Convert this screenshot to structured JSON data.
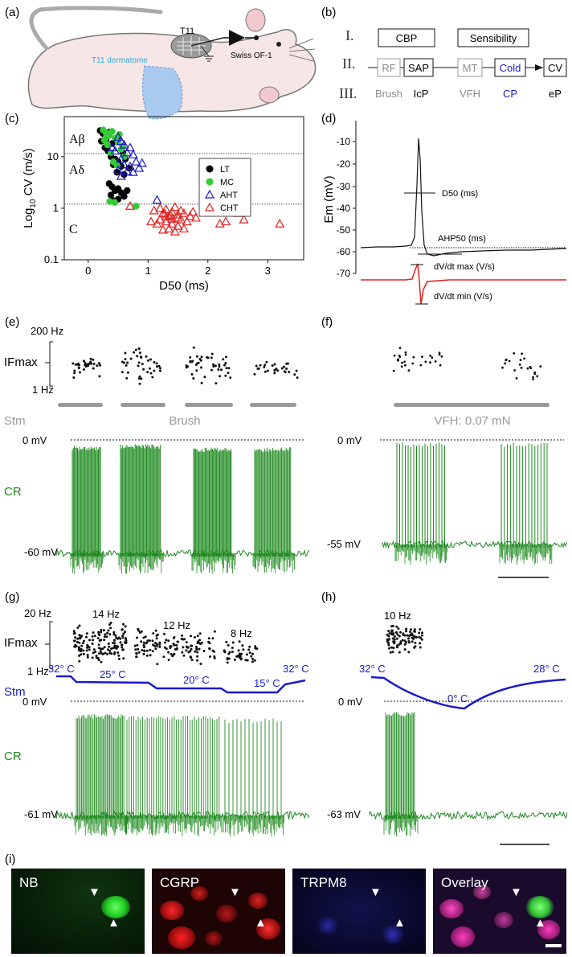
{
  "panels": {
    "a": "(a)",
    "b": "(b)",
    "c": "(c)",
    "d": "(d)",
    "e": "(e)",
    "f": "(f)",
    "g": "(g)",
    "h": "(h)",
    "i": "(i)"
  },
  "panel_a": {
    "t11": "T11",
    "strain": "Swiss OF-1",
    "dermatome": "T11 dermatome"
  },
  "panel_b": {
    "rows": [
      "I.",
      "II.",
      "III."
    ],
    "boxes_top": [
      "CBP",
      "Sensibility"
    ],
    "chain": [
      "RF",
      "SAP",
      "MT",
      "Cold",
      "CV"
    ],
    "bottom": [
      "Brush",
      "IcP",
      "VFH",
      "CP",
      "eP"
    ],
    "colors": {
      "grey": "#8c8c8c",
      "blue": "#1a1acc",
      "black": "#111111"
    }
  },
  "chart_data": [
    {
      "type": "scatter",
      "panel": "c",
      "xlabel": "D50 (ms)",
      "ylabel_prefix": "Log",
      "ylabel_sub": "10",
      "ylabel_suffix": " CV (m/s)",
      "xlim": [
        -0.4,
        3.6
      ],
      "ylim_log": [
        0.1,
        60
      ],
      "xticks": [
        "0",
        "1",
        "2",
        "3"
      ],
      "yticks": [
        "0.1",
        "1",
        "10"
      ],
      "regions": [
        "Aβ",
        "Aδ",
        "C"
      ],
      "thresholds": [
        11.5,
        1.2
      ],
      "legend": [
        "LT",
        "MC",
        "AHT",
        "CHT"
      ],
      "legend_placement": "top-right",
      "series": [
        {
          "name": "LT",
          "color": "#000000",
          "marker": "filled-circle",
          "points": [
            [
              0.2,
              32
            ],
            [
              0.25,
              28
            ],
            [
              0.3,
              25
            ],
            [
              0.35,
              30
            ],
            [
              0.22,
              20
            ],
            [
              0.4,
              18
            ],
            [
              0.28,
              15
            ],
            [
              0.33,
              13
            ],
            [
              0.38,
              10
            ],
            [
              0.45,
              9
            ],
            [
              0.5,
              8
            ],
            [
              0.42,
              7
            ],
            [
              0.55,
              6.5
            ],
            [
              0.48,
              5
            ],
            [
              0.6,
              4.5
            ],
            [
              0.35,
              3
            ],
            [
              0.4,
              2.6
            ],
            [
              0.5,
              2.4
            ],
            [
              0.45,
              2.2
            ],
            [
              0.55,
              2
            ],
            [
              0.38,
              1.8
            ],
            [
              0.6,
              1.7
            ],
            [
              0.5,
              1.5
            ],
            [
              0.42,
              1.4
            ],
            [
              0.65,
              2.2
            ],
            [
              0.3,
              22
            ],
            [
              0.5,
              24
            ],
            [
              0.58,
              12
            ],
            [
              0.62,
              9
            ],
            [
              0.68,
              6
            ]
          ]
        },
        {
          "name": "MC",
          "color": "#33cc33",
          "marker": "filled-circle",
          "points": [
            [
              0.25,
              33
            ],
            [
              0.3,
              29
            ],
            [
              0.35,
              26
            ],
            [
              0.4,
              31
            ],
            [
              0.27,
              21
            ],
            [
              0.45,
              23
            ],
            [
              0.5,
              19
            ],
            [
              0.32,
              17
            ],
            [
              0.55,
              14
            ],
            [
              0.38,
              12
            ],
            [
              0.6,
              10
            ],
            [
              0.42,
              8
            ],
            [
              0.48,
              6.8
            ],
            [
              0.3,
              24
            ],
            [
              0.52,
              27
            ],
            [
              0.58,
              16
            ],
            [
              0.44,
              1.3
            ],
            [
              0.8,
              1.1
            ],
            [
              0.36,
              1.35
            ]
          ]
        },
        {
          "name": "AHT",
          "color": "#1a1acc",
          "marker": "open-triangle",
          "points": [
            [
              0.5,
              24
            ],
            [
              0.55,
              20
            ],
            [
              0.6,
              17
            ],
            [
              0.7,
              15
            ],
            [
              0.45,
              13
            ],
            [
              0.65,
              12
            ],
            [
              0.75,
              11
            ],
            [
              0.55,
              9
            ],
            [
              0.8,
              8
            ],
            [
              0.6,
              7
            ],
            [
              0.7,
              6.5
            ],
            [
              0.85,
              6
            ],
            [
              0.5,
              5.5
            ],
            [
              0.65,
              5.2
            ],
            [
              0.75,
              5
            ],
            [
              0.9,
              7.5
            ],
            [
              0.55,
              4.2
            ],
            [
              1.15,
              1.45
            ],
            [
              0.4,
              15
            ]
          ]
        },
        {
          "name": "CHT",
          "color": "#e02020",
          "marker": "open-triangle",
          "points": [
            [
              0.7,
              1.1
            ],
            [
              1.1,
              0.9
            ],
            [
              1.2,
              1.0
            ],
            [
              1.25,
              0.8
            ],
            [
              1.3,
              0.95
            ],
            [
              1.35,
              0.7
            ],
            [
              1.4,
              0.85
            ],
            [
              1.45,
              1.05
            ],
            [
              1.5,
              0.75
            ],
            [
              1.55,
              0.9
            ],
            [
              1.6,
              0.8
            ],
            [
              1.2,
              0.6
            ],
            [
              1.3,
              0.55
            ],
            [
              1.4,
              0.5
            ],
            [
              1.5,
              0.45
            ],
            [
              1.35,
              0.4
            ],
            [
              1.45,
              0.35
            ],
            [
              1.25,
              0.38
            ],
            [
              1.55,
              0.6
            ],
            [
              1.65,
              0.55
            ],
            [
              1.7,
              0.7
            ],
            [
              1.75,
              0.85
            ],
            [
              1.8,
              0.65
            ],
            [
              1.15,
              0.5
            ],
            [
              1.05,
              0.55
            ],
            [
              1.6,
              0.4
            ],
            [
              1.5,
              0.65
            ],
            [
              1.4,
              0.62
            ],
            [
              1.3,
              0.68
            ],
            [
              1.28,
              0.78
            ],
            [
              1.38,
              0.73
            ],
            [
              2.2,
              0.5
            ],
            [
              2.3,
              0.55
            ],
            [
              2.5,
              0.8
            ],
            [
              2.6,
              0.6
            ],
            [
              3.2,
              0.5
            ]
          ]
        }
      ]
    }
  ],
  "panel_d": {
    "ylabel": "Em (mV)",
    "yticks": [
      "-10",
      "-20",
      "-30",
      "-40",
      "-50",
      "-60",
      "-70"
    ],
    "labels": [
      "D50 (ms)",
      "AHP50 (ms)",
      "dV/dt max (V/s)",
      "dV/dt min (V/s)"
    ]
  },
  "panel_e": {
    "ifmax": "IFmax",
    "top": "200 Hz",
    "bottom": "1 Hz",
    "stm": "Stm",
    "stim_label": "Brush",
    "zero": "0 mV",
    "rest": "-60 mV",
    "cr": "CR"
  },
  "panel_f": {
    "stim_label": "VFH: 0.07 mN",
    "zero": "0 mV",
    "rest": "-55 mV"
  },
  "panel_g": {
    "top": "20 Hz",
    "bottom": "1 Hz",
    "ifmax": "IFmax",
    "freqs": [
      "14 Hz",
      "12 Hz",
      "8 Hz"
    ],
    "stm": "Stm",
    "temps": [
      "32° C",
      "25° C",
      "20° C",
      "15° C",
      "32° C"
    ],
    "zero": "0 mV",
    "cr": "CR",
    "rest": "-61 mV"
  },
  "panel_h": {
    "freq": "10 Hz",
    "temps": [
      "32° C",
      "0° C",
      "28° C"
    ],
    "zero": "0 mV",
    "rest": "-63 mV"
  },
  "panel_i": {
    "channels": [
      "NB",
      "CGRP",
      "TRPM8",
      "Overlay"
    ],
    "colors": {
      "green": "#1c8a1c",
      "red": "#d41a1a",
      "blue": "#2424c8",
      "trace": "#1e8a1e"
    }
  }
}
